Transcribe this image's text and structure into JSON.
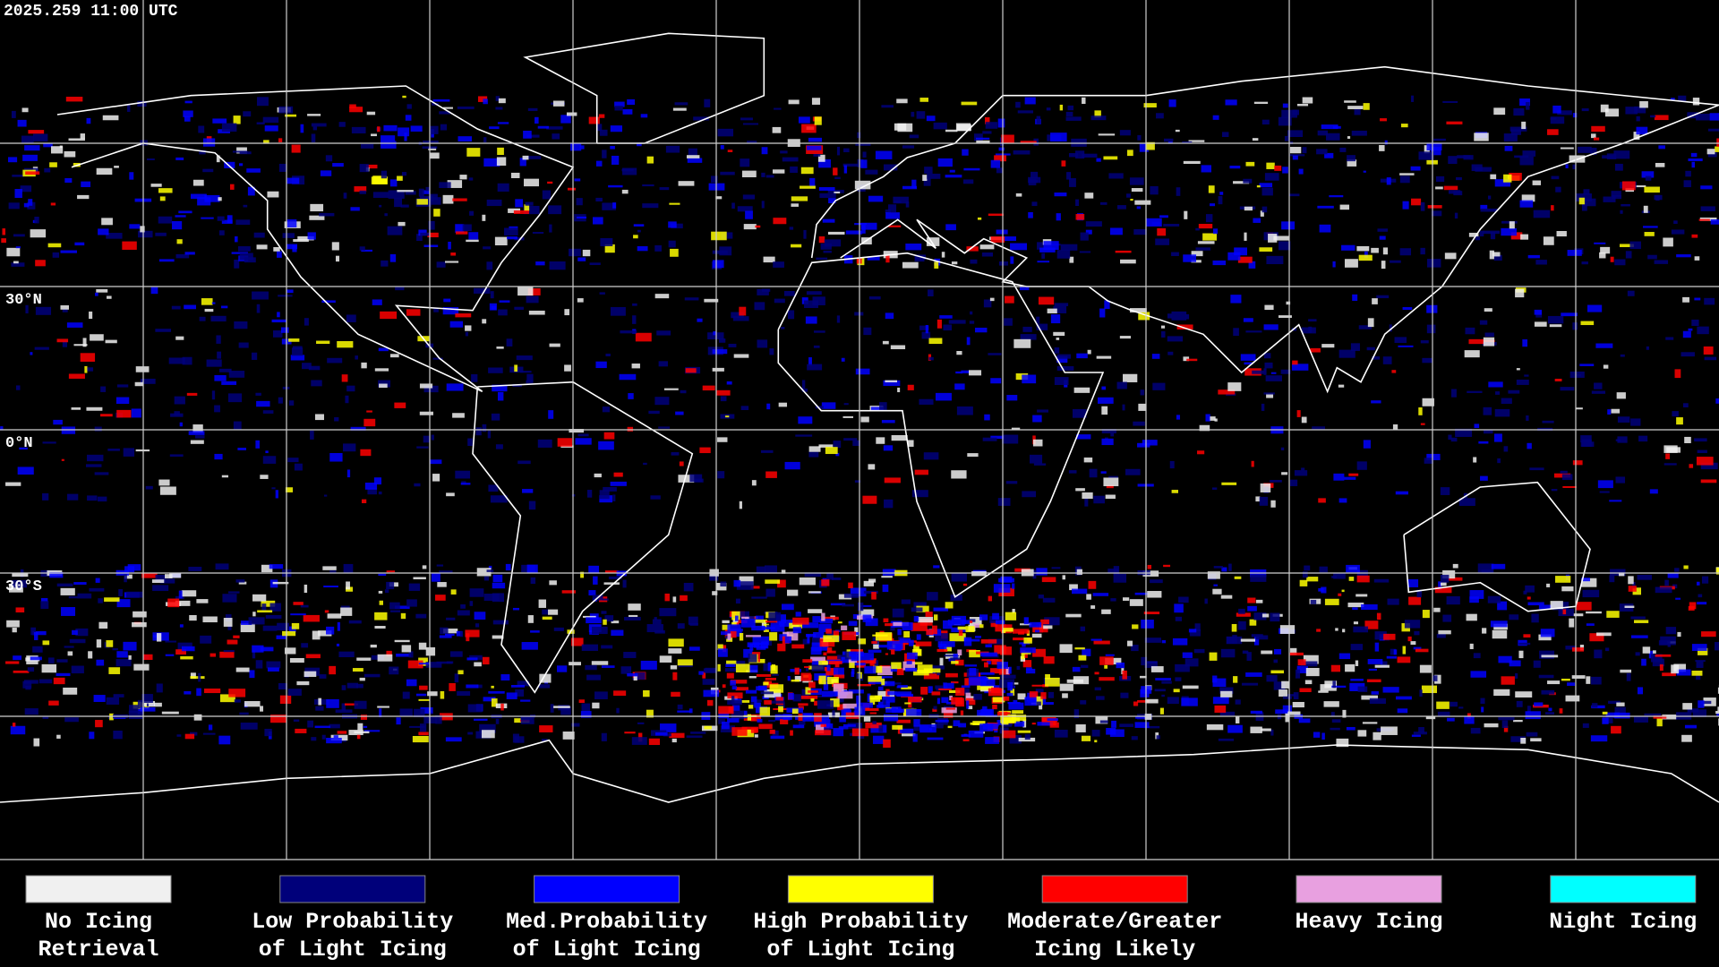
{
  "header": {
    "timestamp": "2025.259 11:00 UTC"
  },
  "map": {
    "latitude_labels": [
      "30°N",
      "0°N",
      "30°S"
    ]
  },
  "legend": {
    "items": [
      {
        "label_lines": [
          "No Icing",
          "Retrieval"
        ],
        "color": "#f0f0f0"
      },
      {
        "label_lines": [
          "Low Probability",
          "of Light Icing"
        ],
        "color": "#00007a"
      },
      {
        "label_lines": [
          "Med.Probability",
          "of Light Icing"
        ],
        "color": "#0000ff"
      },
      {
        "label_lines": [
          "High Probability",
          "of Light Icing"
        ],
        "color": "#ffff00"
      },
      {
        "label_lines": [
          "Moderate/Greater",
          "Icing Likely"
        ],
        "color": "#ff0000"
      },
      {
        "label_lines": [
          "Heavy Icing"
        ],
        "color": "#e8a0e0"
      },
      {
        "label_lines": [
          "Night Icing"
        ],
        "color": "#00ffff"
      }
    ]
  }
}
